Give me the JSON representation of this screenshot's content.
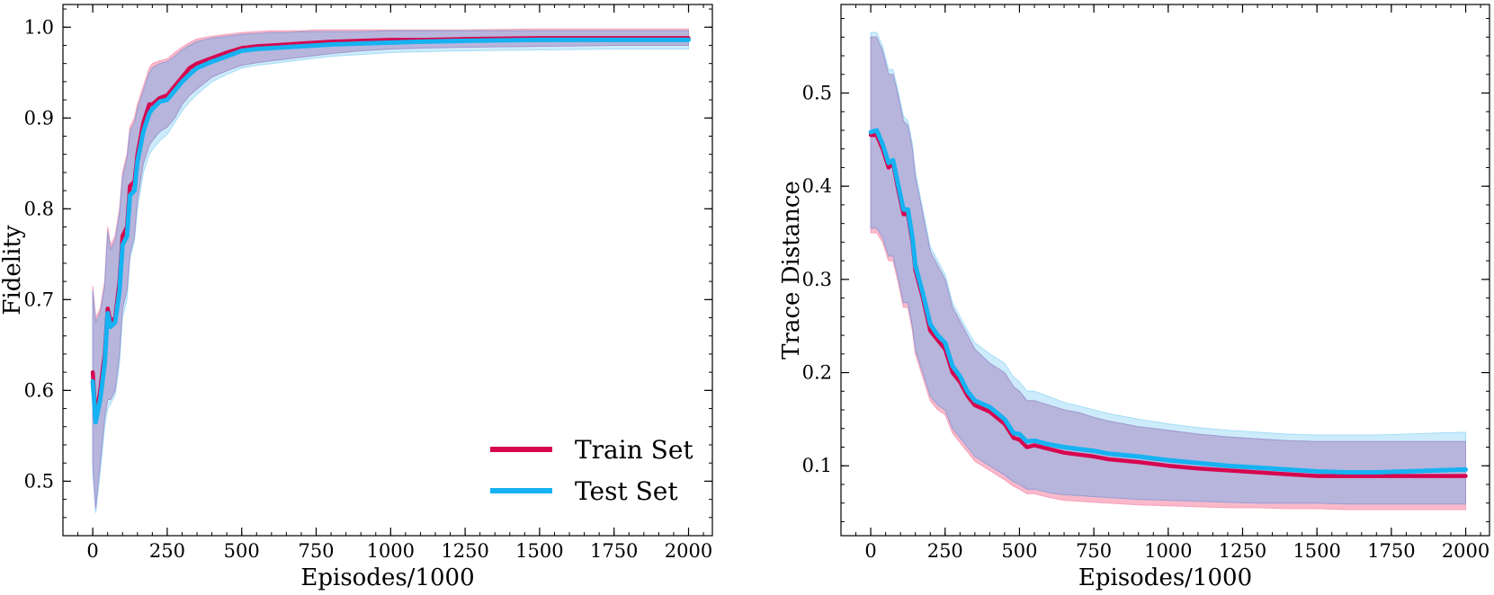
{
  "chart_data": [
    {
      "type": "line",
      "title": "",
      "xlabel": "Episodes/1000",
      "ylabel": "Fidelity",
      "xlim": [
        -100,
        2080
      ],
      "ylim": [
        0.44,
        1.025
      ],
      "xticks": [
        0,
        250,
        500,
        750,
        1000,
        1250,
        1500,
        1750,
        2000
      ],
      "xtick_labels": [
        "0",
        "250",
        "500",
        "750",
        "1000",
        "1250",
        "1500",
        "1750",
        "2000"
      ],
      "yticks": [
        0.5,
        0.6,
        0.7,
        0.8,
        0.9,
        1.0
      ],
      "ytick_labels": [
        "0.5",
        "0.6",
        "0.7",
        "0.8",
        "0.9",
        "1.0"
      ],
      "grid": false,
      "legend": {
        "position": "bottom-right",
        "entries": [
          "Train Set",
          "Test Set"
        ]
      },
      "series": [
        {
          "name": "Train Set",
          "color": "#d6064f",
          "band_color": "#f7a1b8",
          "x": [
            0,
            10,
            25,
            40,
            50,
            60,
            75,
            90,
            100,
            115,
            125,
            140,
            150,
            170,
            190,
            200,
            225,
            250,
            275,
            300,
            325,
            350,
            400,
            450,
            500,
            550,
            600,
            650,
            700,
            750,
            800,
            900,
            1000,
            1100,
            1250,
            1500,
            1750,
            2000
          ],
          "y": [
            0.62,
            0.57,
            0.6,
            0.64,
            0.69,
            0.675,
            0.68,
            0.72,
            0.77,
            0.78,
            0.825,
            0.83,
            0.86,
            0.895,
            0.915,
            0.915,
            0.922,
            0.925,
            0.935,
            0.945,
            0.955,
            0.96,
            0.966,
            0.972,
            0.977,
            0.979,
            0.98,
            0.981,
            0.982,
            0.983,
            0.984,
            0.985,
            0.986,
            0.986,
            0.987,
            0.988,
            0.988,
            0.988
          ],
          "lower": [
            0.52,
            0.47,
            0.52,
            0.57,
            0.59,
            0.59,
            0.6,
            0.64,
            0.69,
            0.71,
            0.75,
            0.77,
            0.81,
            0.85,
            0.87,
            0.875,
            0.885,
            0.89,
            0.9,
            0.915,
            0.925,
            0.932,
            0.945,
            0.952,
            0.958,
            0.961,
            0.963,
            0.965,
            0.967,
            0.969,
            0.971,
            0.974,
            0.976,
            0.977,
            0.978,
            0.979,
            0.98,
            0.98
          ],
          "upper": [
            0.715,
            0.68,
            0.69,
            0.72,
            0.78,
            0.76,
            0.77,
            0.8,
            0.84,
            0.86,
            0.89,
            0.9,
            0.915,
            0.935,
            0.955,
            0.96,
            0.963,
            0.965,
            0.972,
            0.978,
            0.983,
            0.987,
            0.99,
            0.992,
            0.994,
            0.995,
            0.996,
            0.996,
            0.996,
            0.997,
            0.997,
            0.997,
            0.997,
            0.997,
            0.997,
            0.998,
            0.998,
            0.998
          ]
        },
        {
          "name": "Test Set",
          "color": "#16b2f2",
          "band_color": "#a4dcf7",
          "x": [
            0,
            10,
            25,
            40,
            50,
            60,
            75,
            90,
            100,
            115,
            125,
            140,
            150,
            170,
            190,
            200,
            225,
            250,
            275,
            300,
            325,
            350,
            400,
            450,
            500,
            550,
            600,
            650,
            700,
            750,
            800,
            900,
            1000,
            1100,
            1250,
            1500,
            1750,
            2000
          ],
          "y": [
            0.61,
            0.565,
            0.59,
            0.63,
            0.685,
            0.67,
            0.675,
            0.71,
            0.76,
            0.77,
            0.815,
            0.82,
            0.852,
            0.885,
            0.905,
            0.91,
            0.918,
            0.92,
            0.93,
            0.94,
            0.948,
            0.955,
            0.962,
            0.968,
            0.974,
            0.976,
            0.977,
            0.978,
            0.979,
            0.98,
            0.981,
            0.982,
            0.983,
            0.984,
            0.985,
            0.986,
            0.986,
            0.986
          ],
          "lower": [
            0.51,
            0.465,
            0.51,
            0.56,
            0.58,
            0.585,
            0.595,
            0.63,
            0.68,
            0.7,
            0.745,
            0.765,
            0.8,
            0.84,
            0.86,
            0.865,
            0.875,
            0.882,
            0.895,
            0.908,
            0.918,
            0.926,
            0.94,
            0.948,
            0.955,
            0.958,
            0.96,
            0.962,
            0.964,
            0.966,
            0.968,
            0.97,
            0.972,
            0.973,
            0.974,
            0.975,
            0.976,
            0.976
          ],
          "upper": [
            0.71,
            0.675,
            0.685,
            0.715,
            0.775,
            0.755,
            0.765,
            0.795,
            0.835,
            0.855,
            0.885,
            0.895,
            0.91,
            0.93,
            0.95,
            0.955,
            0.96,
            0.962,
            0.968,
            0.975,
            0.98,
            0.984,
            0.988,
            0.99,
            0.992,
            0.993,
            0.994,
            0.994,
            0.995,
            0.995,
            0.995,
            0.995,
            0.996,
            0.996,
            0.996,
            0.996,
            0.996,
            0.996
          ]
        }
      ]
    },
    {
      "type": "line",
      "title": "",
      "xlabel": "Episodes/1000",
      "ylabel": "Trace Distance",
      "xlim": [
        -100,
        2080
      ],
      "ylim": [
        0.025,
        0.595
      ],
      "xticks": [
        0,
        250,
        500,
        750,
        1000,
        1250,
        1500,
        1750,
        2000
      ],
      "xtick_labels": [
        "0",
        "250",
        "500",
        "750",
        "1000",
        "1250",
        "1500",
        "1750",
        "2000"
      ],
      "yticks": [
        0.1,
        0.2,
        0.3,
        0.4,
        0.5
      ],
      "ytick_labels": [
        "0.1",
        "0.2",
        "0.3",
        "0.4",
        "0.5"
      ],
      "grid": false,
      "legend": null,
      "series": [
        {
          "name": "Train Set",
          "color": "#d6064f",
          "band_color": "#f7a1b8",
          "x": [
            0,
            20,
            40,
            60,
            75,
            90,
            110,
            125,
            140,
            150,
            175,
            200,
            225,
            250,
            275,
            300,
            325,
            350,
            400,
            450,
            480,
            500,
            525,
            550,
            600,
            650,
            700,
            750,
            800,
            900,
            1000,
            1100,
            1200,
            1300,
            1400,
            1500,
            1600,
            1700,
            1800,
            1900,
            2000
          ],
          "y": [
            0.455,
            0.455,
            0.44,
            0.42,
            0.425,
            0.4,
            0.37,
            0.37,
            0.34,
            0.31,
            0.28,
            0.245,
            0.235,
            0.225,
            0.2,
            0.19,
            0.175,
            0.165,
            0.158,
            0.145,
            0.13,
            0.128,
            0.12,
            0.122,
            0.118,
            0.114,
            0.112,
            0.11,
            0.107,
            0.104,
            0.1,
            0.097,
            0.095,
            0.093,
            0.091,
            0.089,
            0.089,
            0.089,
            0.089,
            0.089,
            0.089
          ],
          "lower": [
            0.35,
            0.35,
            0.34,
            0.32,
            0.32,
            0.3,
            0.27,
            0.27,
            0.245,
            0.22,
            0.195,
            0.17,
            0.16,
            0.155,
            0.135,
            0.125,
            0.115,
            0.105,
            0.095,
            0.085,
            0.078,
            0.075,
            0.07,
            0.07,
            0.066,
            0.063,
            0.062,
            0.061,
            0.06,
            0.058,
            0.057,
            0.056,
            0.055,
            0.055,
            0.054,
            0.054,
            0.053,
            0.053,
            0.053,
            0.053,
            0.053
          ],
          "upper": [
            0.56,
            0.56,
            0.545,
            0.52,
            0.52,
            0.5,
            0.47,
            0.465,
            0.44,
            0.41,
            0.37,
            0.33,
            0.315,
            0.3,
            0.27,
            0.255,
            0.24,
            0.225,
            0.21,
            0.2,
            0.185,
            0.18,
            0.17,
            0.17,
            0.165,
            0.16,
            0.157,
            0.152,
            0.148,
            0.142,
            0.138,
            0.134,
            0.131,
            0.129,
            0.127,
            0.126,
            0.126,
            0.126,
            0.126,
            0.126,
            0.126
          ]
        },
        {
          "name": "Test Set",
          "color": "#16b2f2",
          "band_color": "#a4dcf7",
          "x": [
            0,
            20,
            40,
            60,
            75,
            90,
            110,
            125,
            140,
            150,
            175,
            200,
            225,
            250,
            275,
            300,
            325,
            350,
            400,
            450,
            480,
            500,
            525,
            550,
            600,
            650,
            700,
            750,
            800,
            900,
            1000,
            1100,
            1200,
            1300,
            1400,
            1500,
            1600,
            1700,
            1800,
            1900,
            2000
          ],
          "y": [
            0.458,
            0.46,
            0.445,
            0.425,
            0.428,
            0.405,
            0.375,
            0.375,
            0.345,
            0.315,
            0.285,
            0.252,
            0.24,
            0.232,
            0.207,
            0.196,
            0.18,
            0.17,
            0.163,
            0.15,
            0.135,
            0.134,
            0.126,
            0.127,
            0.123,
            0.12,
            0.118,
            0.116,
            0.113,
            0.11,
            0.106,
            0.103,
            0.1,
            0.098,
            0.096,
            0.094,
            0.093,
            0.093,
            0.094,
            0.095,
            0.096
          ],
          "lower": [
            0.355,
            0.355,
            0.345,
            0.325,
            0.325,
            0.305,
            0.275,
            0.275,
            0.25,
            0.225,
            0.2,
            0.175,
            0.165,
            0.16,
            0.14,
            0.13,
            0.12,
            0.11,
            0.1,
            0.09,
            0.083,
            0.08,
            0.075,
            0.075,
            0.071,
            0.069,
            0.068,
            0.067,
            0.066,
            0.064,
            0.063,
            0.062,
            0.061,
            0.06,
            0.06,
            0.06,
            0.059,
            0.059,
            0.059,
            0.059,
            0.059
          ],
          "upper": [
            0.565,
            0.565,
            0.55,
            0.525,
            0.525,
            0.505,
            0.475,
            0.47,
            0.445,
            0.415,
            0.375,
            0.335,
            0.32,
            0.305,
            0.275,
            0.26,
            0.245,
            0.232,
            0.22,
            0.21,
            0.195,
            0.19,
            0.18,
            0.18,
            0.174,
            0.168,
            0.164,
            0.16,
            0.156,
            0.15,
            0.145,
            0.141,
            0.138,
            0.136,
            0.134,
            0.133,
            0.133,
            0.133,
            0.134,
            0.135,
            0.136
          ]
        }
      ]
    }
  ]
}
